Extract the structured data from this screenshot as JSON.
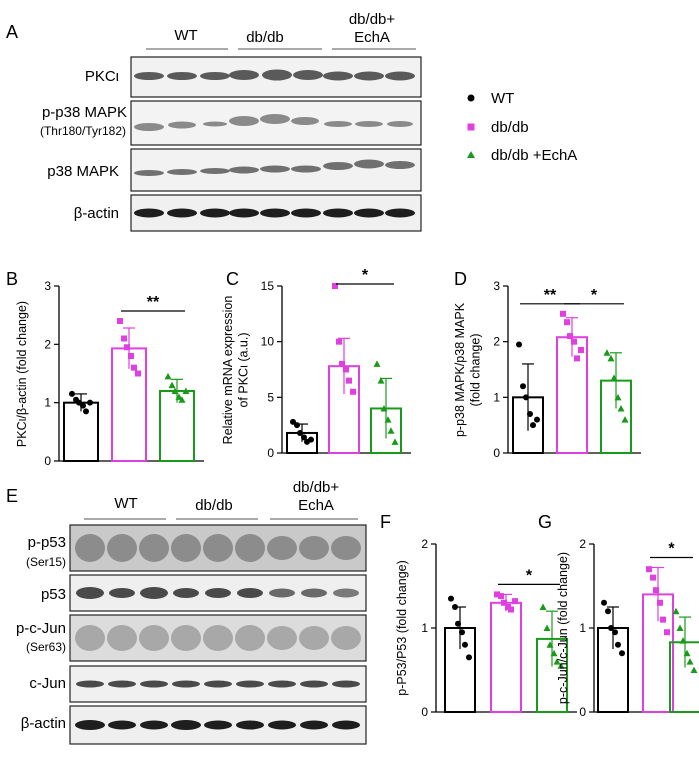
{
  "panel_letters": [
    "A",
    "B",
    "C",
    "D",
    "E",
    "F",
    "G"
  ],
  "blot_A": {
    "groups": [
      "WT",
      "db/db",
      "db/db+",
      "EchA"
    ],
    "rows": [
      {
        "label": "PKCι",
        "sublabel": ""
      },
      {
        "label": "p-p38 MAPK",
        "sublabel": "(Thr180/Tyr182)"
      },
      {
        "label": "p38 MAPK",
        "sublabel": ""
      },
      {
        "label": "β-actin",
        "sublabel": ""
      }
    ]
  },
  "blot_E": {
    "groups": [
      "WT",
      "db/db",
      "db/db+",
      "EchA"
    ],
    "rows": [
      {
        "label": "p-p53",
        "sublabel": "(Ser15)"
      },
      {
        "label": "p53",
        "sublabel": ""
      },
      {
        "label": "p-c-Jun",
        "sublabel": "(Ser63)"
      },
      {
        "label": "c-Jun",
        "sublabel": ""
      },
      {
        "label": "β-actin",
        "sublabel": ""
      }
    ]
  },
  "legend": [
    {
      "label": "WT",
      "marker": "circle",
      "color": "#000000"
    },
    {
      "label": "db/db",
      "marker": "square",
      "color": "#e040e0"
    },
    {
      "label": "db/db +EchA",
      "marker": "triangle",
      "color": "#1a9a1a"
    }
  ],
  "colors": {
    "wt": "#000000",
    "dbdb": "#e040e0",
    "echa": "#1a9a1a"
  },
  "chart_data": [
    {
      "panel": "B",
      "type": "bar",
      "categories": [
        "WT",
        "db/db",
        "db/db +EchA"
      ],
      "values": [
        1.0,
        1.93,
        1.2
      ],
      "sd": [
        0.15,
        0.35,
        0.2
      ],
      "points": [
        [
          1.15,
          1.05,
          1.0,
          0.95,
          0.85,
          1.0
        ],
        [
          2.4,
          2.1,
          1.95,
          1.8,
          1.6,
          1.5
        ],
        [
          1.45,
          1.3,
          1.2,
          1.1,
          1.05,
          1.2
        ]
      ],
      "ylabel": "PKCι/β-actin (fold change)",
      "ylim": [
        0,
        3
      ],
      "ticks": [
        "0",
        "1",
        "2",
        "3"
      ],
      "sig": [
        {
          "from": 1,
          "to": 2,
          "label": "**"
        }
      ]
    },
    {
      "panel": "C",
      "type": "bar",
      "categories": [
        "WT",
        "db/db",
        "db/db +EchA"
      ],
      "values": [
        1.8,
        7.8,
        4.0
      ],
      "sd": [
        0.8,
        2.5,
        2.7
      ],
      "points": [
        [
          2.8,
          2.5,
          1.8,
          1.4,
          1.0,
          1.2
        ],
        [
          15.0,
          10.0,
          8.0,
          7.5,
          6.5,
          5.5
        ],
        [
          8.0,
          6.5,
          4.0,
          3.0,
          2.0,
          1.0
        ]
      ],
      "ylabel": "Relative mRNA expression of PKCι (a.u.)",
      "ylim": [
        0,
        15
      ],
      "ticks": [
        "0",
        "5",
        "10",
        "15"
      ],
      "sig": [
        {
          "from": 1,
          "to": 2,
          "label": "*"
        }
      ]
    },
    {
      "panel": "D",
      "type": "bar",
      "categories": [
        "WT",
        "db/db",
        "db/db +EchA"
      ],
      "values": [
        1.0,
        2.08,
        1.3
      ],
      "sd": [
        0.6,
        0.35,
        0.5
      ],
      "points": [
        [
          1.95,
          1.2,
          1.0,
          0.7,
          0.5,
          0.6
        ],
        [
          2.5,
          2.35,
          2.1,
          2.0,
          1.7,
          1.85
        ],
        [
          1.8,
          1.7,
          1.35,
          1.0,
          0.8,
          0.6
        ]
      ],
      "ylabel": "p-p38 MAPK/p38 MAPK (fold change)",
      "ylim": [
        0,
        3
      ],
      "ticks": [
        "0",
        "1",
        "2",
        "3"
      ],
      "sig": [
        {
          "from": 0,
          "to": 1,
          "label": "**"
        },
        {
          "from": 1,
          "to": 2,
          "label": "*"
        }
      ]
    },
    {
      "panel": "F",
      "type": "bar",
      "categories": [
        "WT",
        "db/db",
        "db/db +EchA"
      ],
      "values": [
        1.0,
        1.3,
        0.87
      ],
      "sd": [
        0.25,
        0.1,
        0.33
      ],
      "points": [
        [
          1.35,
          1.25,
          1.05,
          0.95,
          0.8,
          0.65
        ],
        [
          1.4,
          1.38,
          1.3,
          1.25,
          1.22,
          1.32
        ],
        [
          1.25,
          1.0,
          0.8,
          0.7,
          0.6,
          0.55
        ]
      ],
      "ylabel": "p-P53/P53 (fold change)",
      "ylim": [
        0,
        2
      ],
      "ticks": [
        "0",
        "1",
        "2"
      ],
      "sig": [
        {
          "from": 1,
          "to": 2,
          "label": "*"
        }
      ]
    },
    {
      "panel": "G",
      "type": "bar",
      "categories": [
        "WT",
        "db/db",
        "db/db +EchA"
      ],
      "values": [
        1.0,
        1.4,
        0.83
      ],
      "sd": [
        0.25,
        0.32,
        0.3
      ],
      "points": [
        [
          1.3,
          1.2,
          1.0,
          0.95,
          0.8,
          0.7
        ],
        [
          1.7,
          1.6,
          1.45,
          1.3,
          1.1,
          0.95
        ],
        [
          1.2,
          1.0,
          0.85,
          0.7,
          0.6,
          0.5
        ]
      ],
      "ylabel": "p-c-Jun/c-Jun (fold change)",
      "ylim": [
        0,
        2
      ],
      "ticks": [
        "0",
        "1",
        "2"
      ],
      "sig": [
        {
          "from": 1,
          "to": 2,
          "label": "*"
        }
      ]
    }
  ]
}
